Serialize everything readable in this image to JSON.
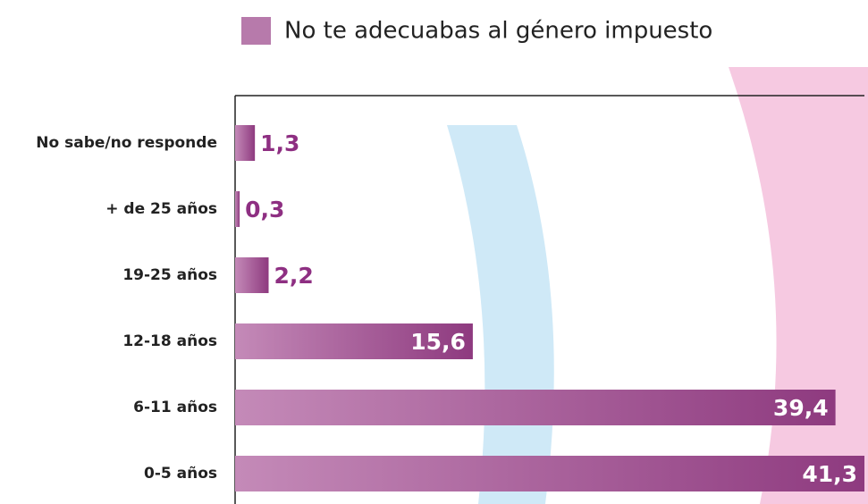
{
  "chart_data": {
    "type": "bar",
    "orientation": "horizontal",
    "categories": [
      "No sabe/no responde",
      "+ de 25 años",
      "19-25 años",
      "12-18 años",
      "6-11 años",
      "0-5 años"
    ],
    "series": [
      {
        "name": "No te adecuabas al género impuesto",
        "color": "#b77aab",
        "values": [
          1.3,
          0.3,
          2.2,
          15.6,
          39.4,
          41.3
        ],
        "value_labels": [
          "1,3",
          "0,3",
          "2,2",
          "15,6",
          "39,4",
          "41,3"
        ]
      }
    ],
    "xlim": [
      0,
      41.3
    ],
    "label_color": "#8e2f82"
  }
}
